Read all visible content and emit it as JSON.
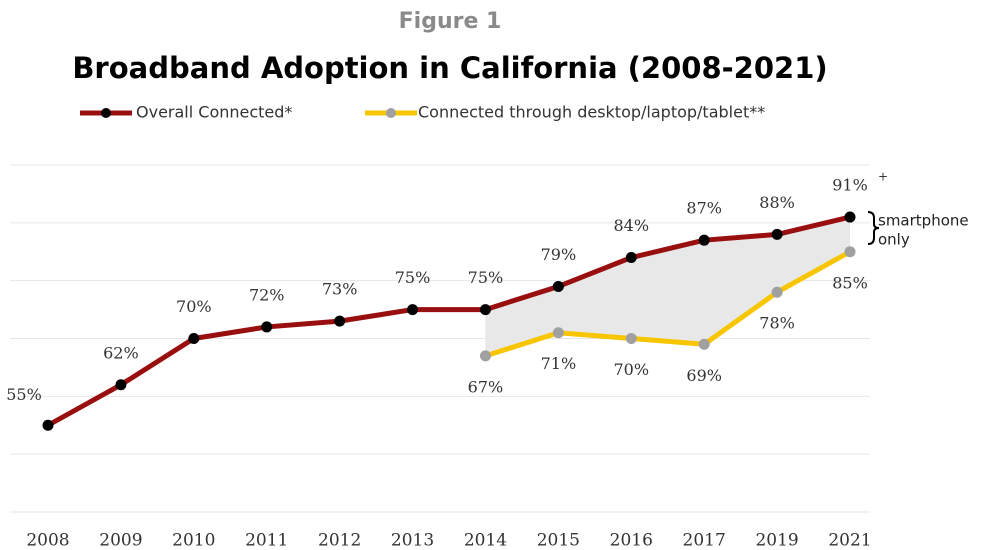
{
  "chart_data": {
    "type": "line",
    "figure_label": "Figure 1",
    "title": "Broadband Adoption in California (2008-2021)",
    "categories": [
      "2008",
      "2009",
      "2010",
      "2011",
      "2012",
      "2013",
      "2014",
      "2015",
      "2016",
      "2017",
      "2019",
      "2021"
    ],
    "series": [
      {
        "name": "Overall Connected*",
        "color": "#990f0f",
        "marker_color": "#000000",
        "values": [
          55,
          62,
          70,
          72,
          73,
          75,
          75,
          79,
          84,
          87,
          88,
          91
        ],
        "value_labels": [
          "55%",
          "62%",
          "70%",
          "72%",
          "73%",
          "75%",
          "75%",
          "79%",
          "84%",
          "87%",
          "88%",
          "91%"
        ]
      },
      {
        "name": "Connected through desktop/laptop/tablet**",
        "color": "#f7c600",
        "marker_color": "#a0a0a0",
        "values": [
          null,
          null,
          null,
          null,
          null,
          null,
          67,
          71,
          70,
          69,
          78,
          85
        ],
        "value_labels": [
          null,
          null,
          null,
          null,
          null,
          null,
          "67%",
          "71%",
          "70%",
          "69%",
          "78%",
          "85%"
        ]
      }
    ],
    "last_label_mark": "+",
    "gap_annotation": [
      "smartphone",
      "only"
    ],
    "ylim": [
      40,
      100
    ],
    "yticks": [
      40,
      50,
      60,
      70,
      80,
      90,
      100
    ],
    "grid": true
  }
}
